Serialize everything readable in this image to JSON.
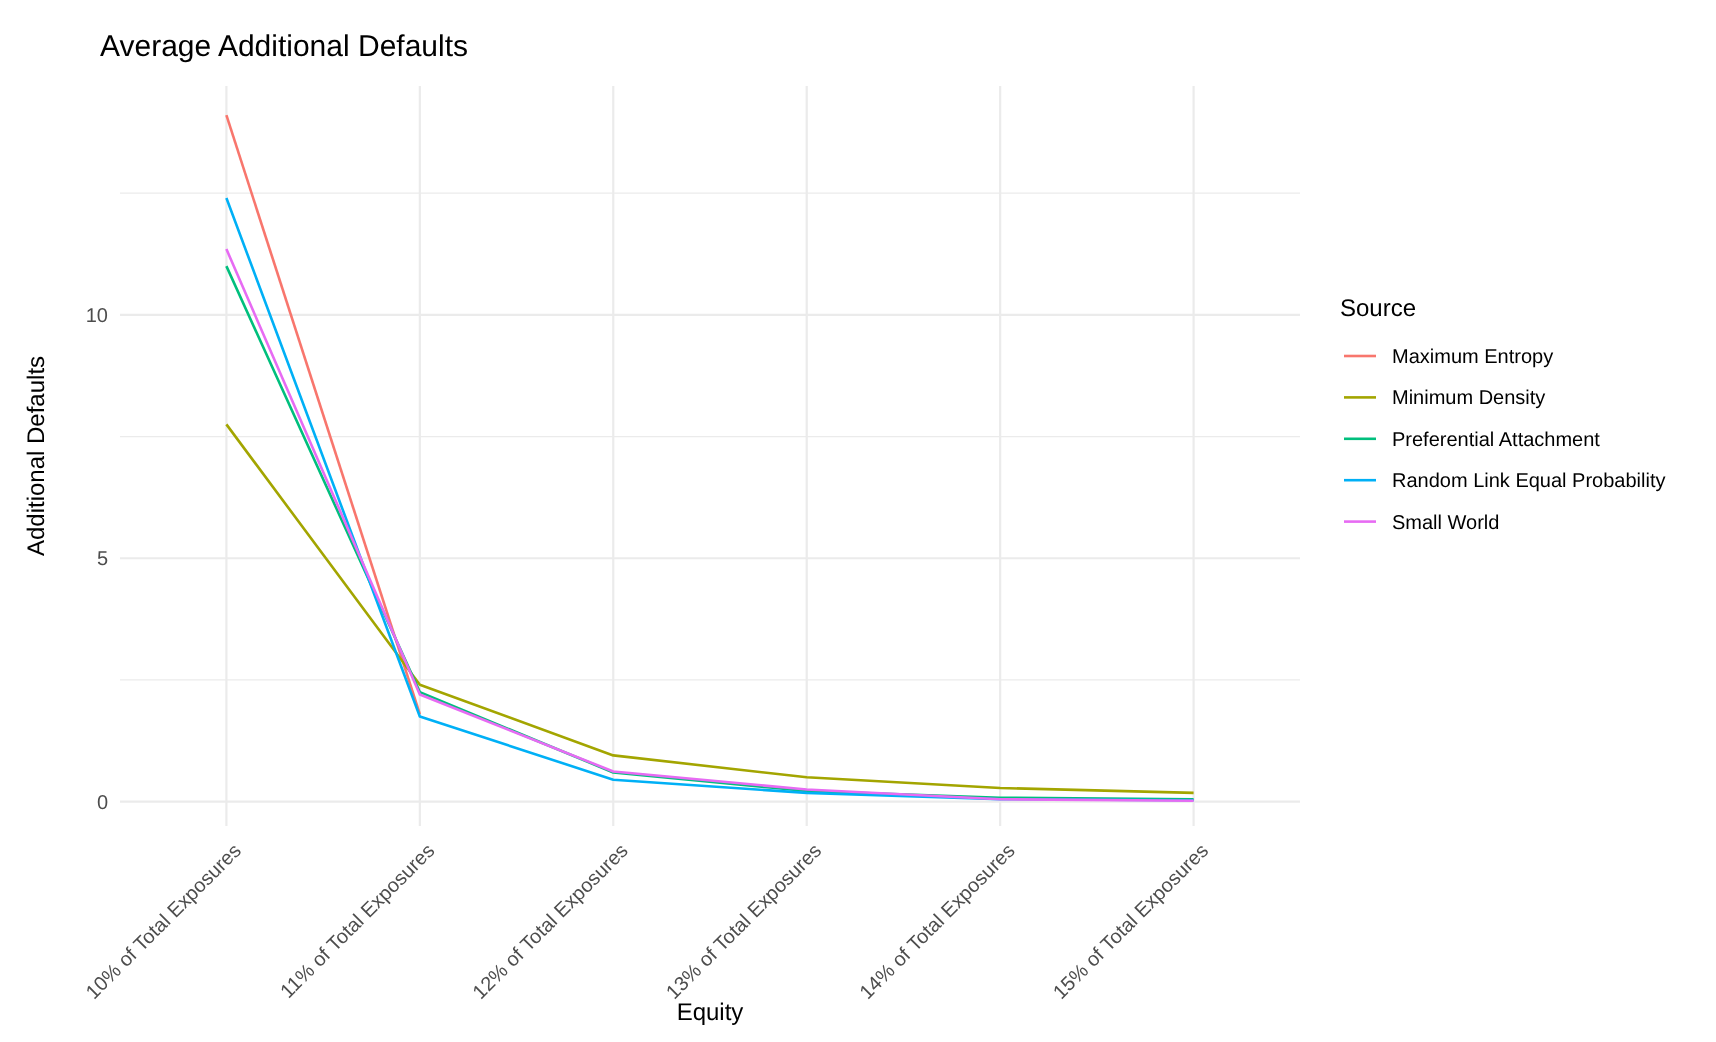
{
  "chart_data": {
    "type": "line",
    "title": "Average Additional Defaults",
    "xlabel": "Equity",
    "ylabel": "Additional Defaults",
    "legend_title": "Source",
    "legend": "right",
    "grid": true,
    "categories": [
      "10% of Total Exposures",
      "11% of Total Exposures",
      "12% of Total Exposures",
      "13% of Total Exposures",
      "14% of Total Exposures",
      "15% of Total Exposures"
    ],
    "ylim": [
      -0.5,
      14.7
    ],
    "yticks": [
      0,
      {
        "value": 2.5,
        "label": null
      },
      5,
      {
        "value": 7.5,
        "label": null
      },
      10,
      {
        "value": 12.5,
        "label": null
      }
    ],
    "series": [
      {
        "name": "Maximum Entropy",
        "color": "#f8766d",
        "values": [
          14.1,
          1.8,
          null,
          null,
          null,
          null
        ]
      },
      {
        "name": "Minimum Density",
        "color": "#a3a500",
        "values": [
          7.75,
          2.4,
          0.95,
          0.5,
          0.28,
          0.18
        ]
      },
      {
        "name": "Preferential Attachment",
        "color": "#00bf7d",
        "values": [
          11.0,
          2.25,
          0.6,
          0.22,
          0.08,
          0.05
        ]
      },
      {
        "name": "Random Link Equal Probability",
        "color": "#00b0f6",
        "values": [
          12.4,
          1.75,
          0.45,
          0.18,
          0.05,
          0.03
        ]
      },
      {
        "name": "Small World",
        "color": "#e76bf3",
        "values": [
          11.35,
          2.2,
          0.62,
          0.25,
          0.05,
          0.02
        ]
      }
    ]
  }
}
